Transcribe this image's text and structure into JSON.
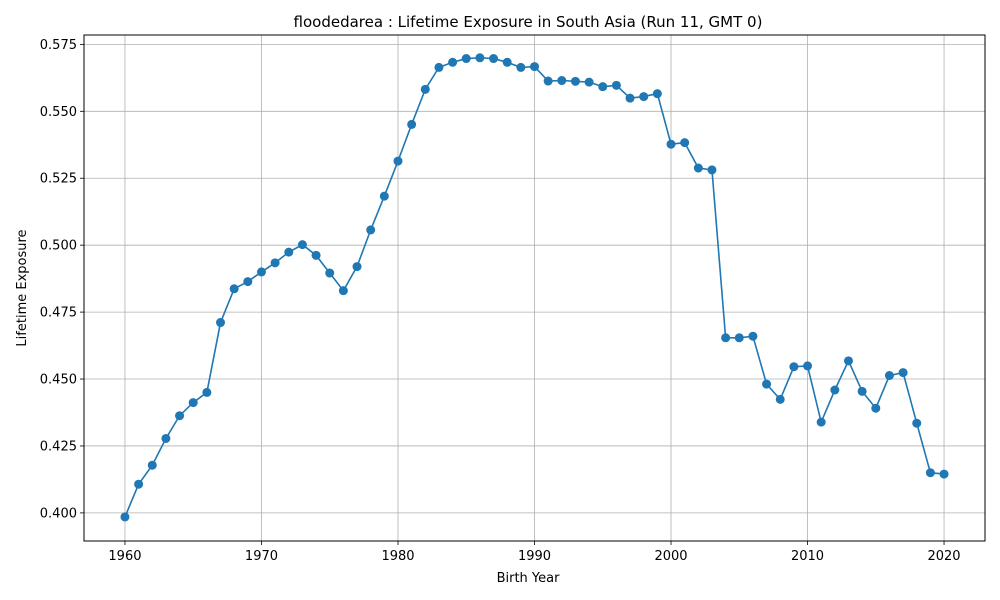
{
  "chart_data": {
    "type": "line",
    "title": "floodedarea : Lifetime Exposure in South Asia (Run 11, GMT 0)",
    "xlabel": "Birth Year",
    "ylabel": "Lifetime Exposure",
    "xlim": [
      1957,
      2023
    ],
    "ylim": [
      0.3895,
      0.5785
    ],
    "xticks": [
      1960,
      1970,
      1980,
      1990,
      2000,
      2010,
      2020
    ],
    "yticks": [
      0.4,
      0.425,
      0.45,
      0.475,
      0.5,
      0.525,
      0.55,
      0.575
    ],
    "ytick_labels": [
      "0.400",
      "0.425",
      "0.450",
      "0.475",
      "0.500",
      "0.525",
      "0.550",
      "0.575"
    ],
    "grid": true,
    "line_color": "#1f77b4",
    "marker": "circle",
    "x": [
      1960,
      1961,
      1962,
      1963,
      1964,
      1965,
      1966,
      1967,
      1968,
      1969,
      1970,
      1971,
      1972,
      1973,
      1974,
      1975,
      1976,
      1977,
      1978,
      1979,
      1980,
      1981,
      1982,
      1983,
      1984,
      1985,
      1986,
      1987,
      1988,
      1989,
      1990,
      1991,
      1992,
      1993,
      1994,
      1995,
      1996,
      1997,
      1998,
      1999,
      2000,
      2001,
      2002,
      2003,
      2004,
      2005,
      2006,
      2007,
      2008,
      2009,
      2010,
      2011,
      2012,
      2013,
      2014,
      2015,
      2016,
      2017,
      2018,
      2019,
      2020
    ],
    "y": [
      0.3985,
      0.4107,
      0.4178,
      0.4278,
      0.4363,
      0.4412,
      0.445,
      0.4711,
      0.4837,
      0.4864,
      0.49,
      0.4934,
      0.4974,
      0.5002,
      0.4962,
      0.4896,
      0.483,
      0.492,
      0.5057,
      0.5183,
      0.5314,
      0.5451,
      0.5582,
      0.5664,
      0.5683,
      0.5697,
      0.57,
      0.5697,
      0.5683,
      0.5664,
      0.5667,
      0.5613,
      0.5615,
      0.5612,
      0.5609,
      0.5592,
      0.5597,
      0.5549,
      0.5555,
      0.5566,
      0.5377,
      0.5383,
      0.5288,
      0.5281,
      0.4654,
      0.4654,
      0.466,
      0.4481,
      0.4424,
      0.4546,
      0.4549,
      0.4339,
      0.4459,
      0.4568,
      0.4454,
      0.4391,
      0.4513,
      0.4524,
      0.4335,
      0.415,
      0.4145
    ]
  }
}
